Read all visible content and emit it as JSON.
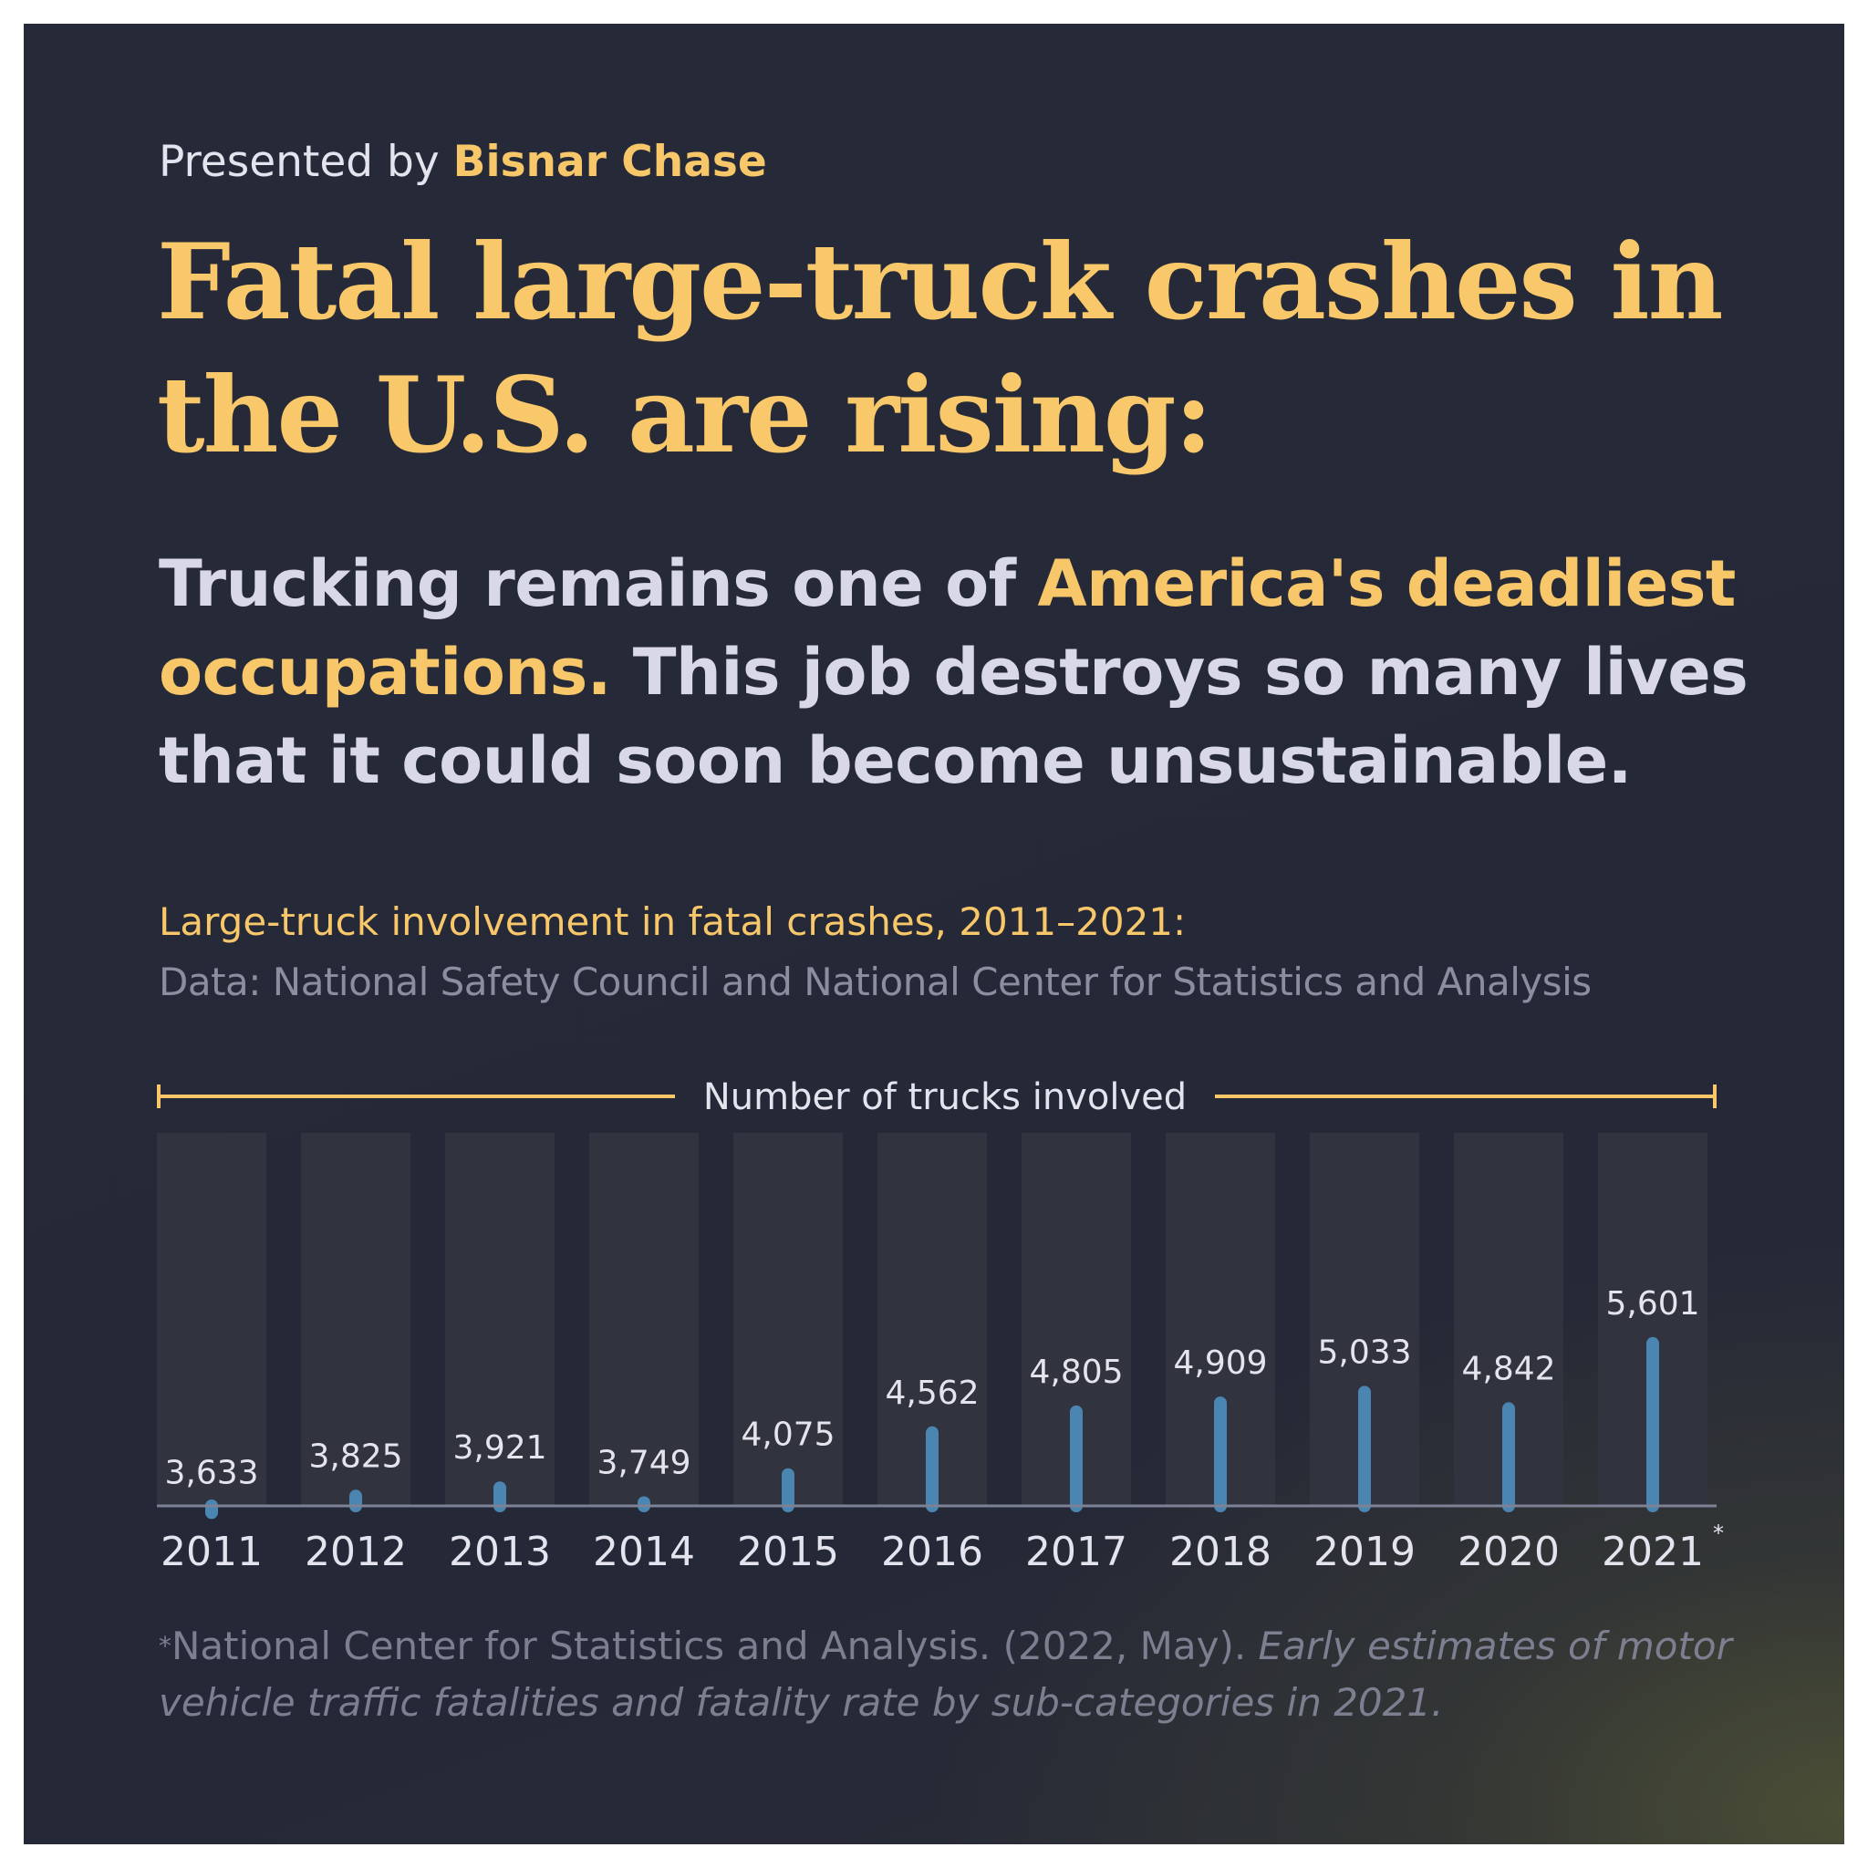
{
  "header": {
    "presented_prefix": "Presented by",
    "brand": "Bisnar Chase",
    "headline": "Fatal large-truck crashes in the U.S. are rising:",
    "subhead_part1": "Trucking remains one of",
    "subhead_highlight": "America's deadliest occupations.",
    "subhead_part2": "This job destroys so many lives that it could soon become unsustainable."
  },
  "chart_info": {
    "title": "Large-truck involvement in fatal crashes, 2011–2021:",
    "source": "Data: National Safety Council and National Center for Statistics and Analysis"
  },
  "footnote": {
    "marker": "*",
    "text": "National Center for Statistics and Analysis. (2022, May).",
    "title": "Early estimates of motor vehicle traffic fatalities and fatality rate by sub-categories in 2021."
  },
  "colors": {
    "accent_yellow": "#f7c76a",
    "bar_blue": "#4a86b1",
    "column_bg": "#31333f",
    "text_light": "#e4e4ee",
    "text_muted": "#8b8e9e"
  },
  "chart_data": {
    "type": "bar",
    "header_label": "Number of trucks involved",
    "categories": [
      "2011",
      "2012",
      "2013",
      "2014",
      "2015",
      "2016",
      "2017",
      "2018",
      "2019",
      "2020",
      "2021"
    ],
    "category_markers": [
      "",
      "",
      "",
      "",
      "",
      "",
      "",
      "",
      "",
      "",
      "*"
    ],
    "values": [
      3633,
      3825,
      3921,
      3749,
      4075,
      4562,
      4805,
      4909,
      5033,
      4842,
      5601
    ],
    "value_labels": [
      "3,633",
      "3,825",
      "3,921",
      "3,749",
      "4,075",
      "4,562",
      "4,805",
      "4,909",
      "5,033",
      "4,842",
      "5,601"
    ],
    "grid": false
  }
}
